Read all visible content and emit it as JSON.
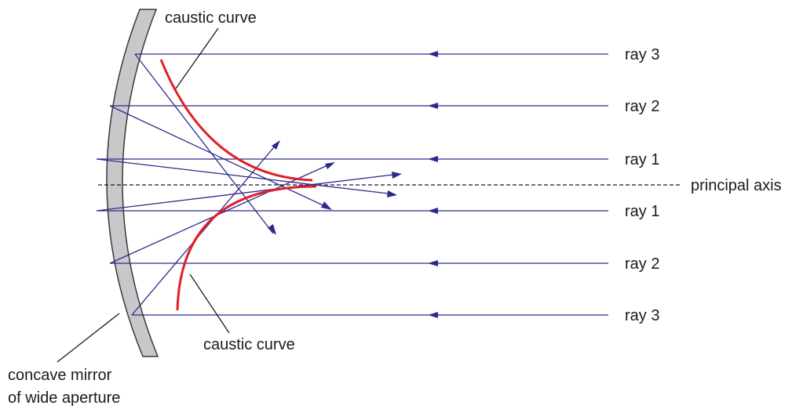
{
  "labels": {
    "caustic_top": "caustic curve",
    "caustic_bottom": "caustic curve",
    "principal_axis": "principal axis",
    "mirror_line1": "concave mirror",
    "mirror_line2": "of wide aperture",
    "rays_right": [
      "ray 3",
      "ray 2",
      "ray 1",
      "ray 1",
      "ray 2",
      "ray 3"
    ]
  },
  "colors": {
    "ray": "#2b2b8c",
    "caustic": "#e0202a",
    "mirror_fill": "#c8c8ca",
    "mirror_edge": "#3a3a3a",
    "text": "#1a1a1a"
  }
}
